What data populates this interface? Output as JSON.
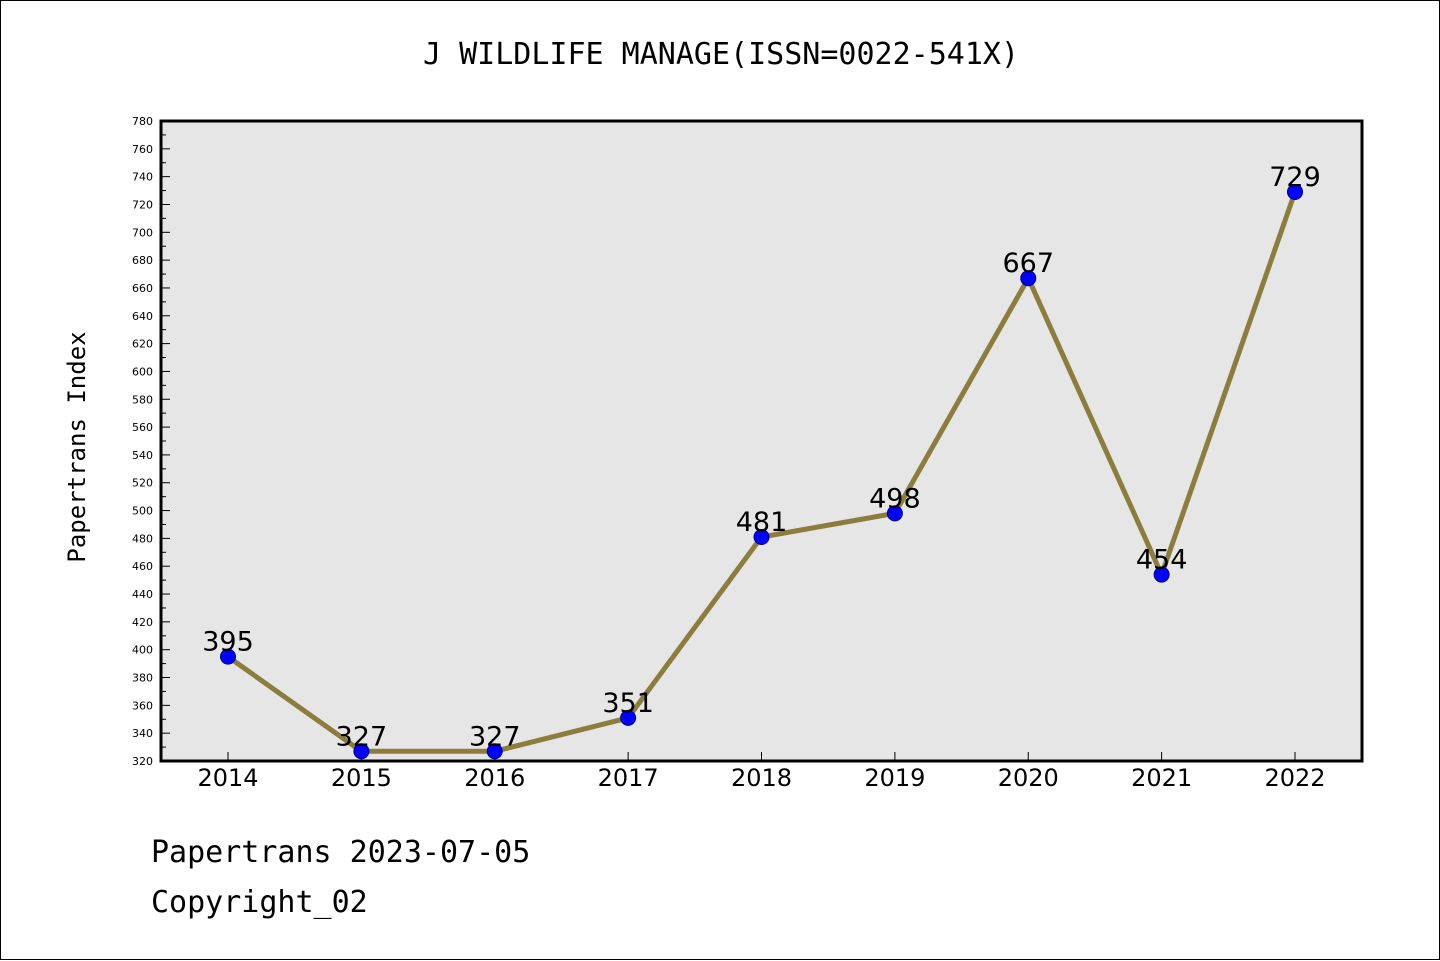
{
  "chart_data": {
    "type": "line",
    "title": "J WILDLIFE MANAGE(ISSN=0022-541X)",
    "xlabel": "",
    "ylabel": "Papertrans Index",
    "categories": [
      "2014",
      "2015",
      "2016",
      "2017",
      "2018",
      "2019",
      "2020",
      "2021",
      "2022"
    ],
    "series": [
      {
        "values": [
          395,
          327,
          327,
          351,
          481,
          498,
          667,
          454,
          729
        ]
      }
    ],
    "ylim": [
      320,
      780
    ],
    "ytick_step": 20,
    "data_labels": true,
    "grid": false,
    "colors": {
      "line": "#8c7d3c",
      "marker": "#0000ff",
      "plot_background": "#e6e6e6"
    }
  },
  "footer": {
    "date_line": "Papertrans 2023-07-05",
    "copyright": "Copyright_02"
  }
}
